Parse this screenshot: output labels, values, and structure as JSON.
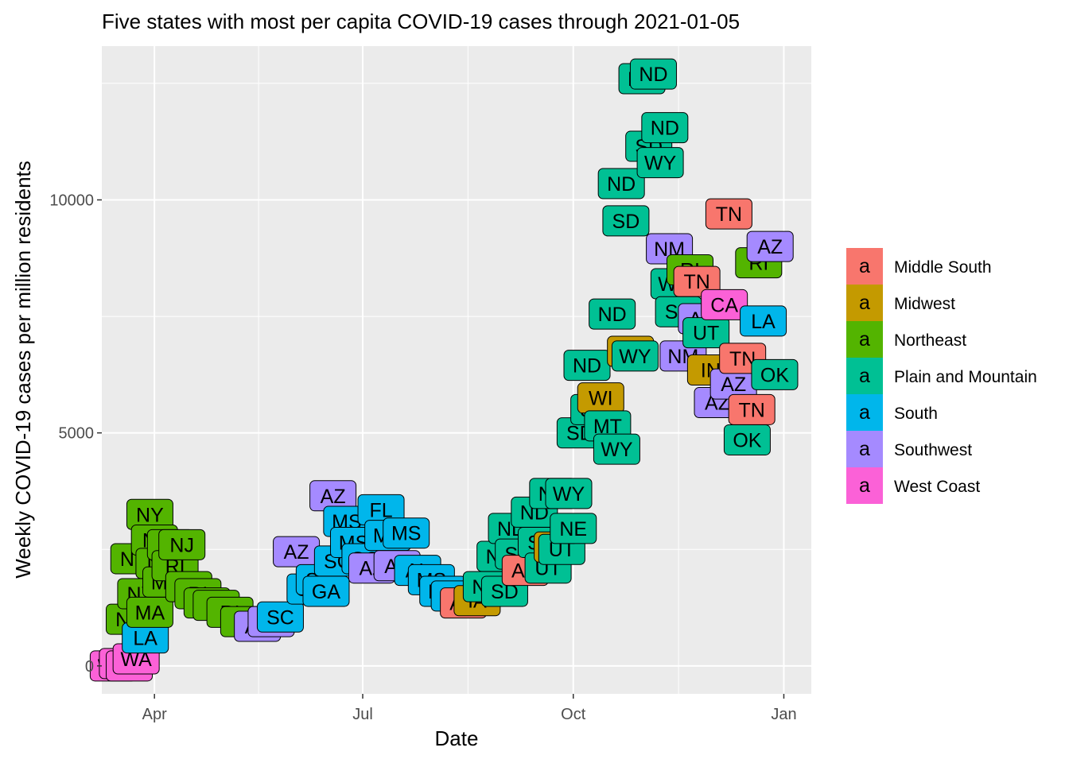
{
  "chart_data": {
    "type": "scatter",
    "title": "Five states with most per capita COVID-19 cases through 2021-01-05",
    "xlabel": "Date",
    "ylabel": "Weekly COVID-19 cases per million residents",
    "x_ticks": [
      "Apr",
      "Jul",
      "Oct",
      "Jan"
    ],
    "y_ticks": [
      0,
      5000,
      10000
    ],
    "ylim": [
      -600,
      13300
    ],
    "xlim": [
      "2020-03-09",
      "2021-01-13"
    ],
    "grid": true,
    "panel_color": "#EBEBEB",
    "legend": {
      "position": "right",
      "key_glyph": "a",
      "entries": [
        {
          "name": "Middle South",
          "color": "#F8766D"
        },
        {
          "name": "Midwest",
          "color": "#C49A00"
        },
        {
          "name": "Northeast",
          "color": "#53B400"
        },
        {
          "name": "Plain and Mountain",
          "color": "#00C094"
        },
        {
          "name": "South",
          "color": "#00B6EB"
        },
        {
          "name": "Southwest",
          "color": "#A58AFF"
        },
        {
          "name": "West Coast",
          "color": "#FB61D7"
        }
      ]
    },
    "points": [
      {
        "date": "2020-03-14",
        "value": 0,
        "label": "WA",
        "region": "West Coast"
      },
      {
        "date": "2020-03-18",
        "value": 50,
        "label": "WA",
        "region": "West Coast"
      },
      {
        "date": "2020-03-21",
        "value": 0,
        "label": "WA",
        "region": "West Coast"
      },
      {
        "date": "2020-03-24",
        "value": 150,
        "label": "WA",
        "region": "West Coast"
      },
      {
        "date": "2020-03-21",
        "value": 1000,
        "label": "NY",
        "region": "Northeast"
      },
      {
        "date": "2020-03-23",
        "value": 2300,
        "label": "NY",
        "region": "Northeast"
      },
      {
        "date": "2020-03-26",
        "value": 1550,
        "label": "NY",
        "region": "Northeast"
      },
      {
        "date": "2020-03-28",
        "value": 600,
        "label": "LA",
        "region": "South"
      },
      {
        "date": "2020-03-30",
        "value": 1150,
        "label": "MA",
        "region": "Northeast"
      },
      {
        "date": "2020-03-30",
        "value": 3250,
        "label": "NY",
        "region": "Northeast"
      },
      {
        "date": "2020-04-01",
        "value": 2700,
        "label": "NJ",
        "region": "Northeast"
      },
      {
        "date": "2020-04-03",
        "value": 2200,
        "label": "NJ",
        "region": "Northeast"
      },
      {
        "date": "2020-04-06",
        "value": 1800,
        "label": "MA",
        "region": "Northeast"
      },
      {
        "date": "2020-04-08",
        "value": 2600,
        "label": "NJ",
        "region": "Northeast"
      },
      {
        "date": "2020-04-10",
        "value": 2150,
        "label": "RI",
        "region": "Northeast"
      },
      {
        "date": "2020-04-13",
        "value": 2600,
        "label": "NJ",
        "region": "Northeast"
      },
      {
        "date": "2020-04-16",
        "value": 1700,
        "label": "RI",
        "region": "Northeast"
      },
      {
        "date": "2020-04-20",
        "value": 1550,
        "label": "RI",
        "region": "Northeast"
      },
      {
        "date": "2020-04-24",
        "value": 1350,
        "label": "RI",
        "region": "Northeast"
      },
      {
        "date": "2020-04-28",
        "value": 1300,
        "label": "RI",
        "region": "Northeast"
      },
      {
        "date": "2020-05-04",
        "value": 1150,
        "label": "RI",
        "region": "Northeast"
      },
      {
        "date": "2020-05-10",
        "value": 950,
        "label": "RI",
        "region": "Northeast"
      },
      {
        "date": "2020-05-16",
        "value": 850,
        "label": "AZ",
        "region": "Southwest"
      },
      {
        "date": "2020-05-22",
        "value": 950,
        "label": "AZ",
        "region": "Southwest"
      },
      {
        "date": "2020-05-26",
        "value": 1050,
        "label": "SC",
        "region": "South"
      },
      {
        "date": "2020-06-02",
        "value": 2450,
        "label": "AZ",
        "region": "Southwest"
      },
      {
        "date": "2020-06-08",
        "value": 1650,
        "label": "SC",
        "region": "South"
      },
      {
        "date": "2020-06-12",
        "value": 1850,
        "label": "SC",
        "region": "South"
      },
      {
        "date": "2020-06-15",
        "value": 1600,
        "label": "GA",
        "region": "South"
      },
      {
        "date": "2020-06-18",
        "value": 3650,
        "label": "AZ",
        "region": "Southwest"
      },
      {
        "date": "2020-06-20",
        "value": 2250,
        "label": "SC",
        "region": "South"
      },
      {
        "date": "2020-06-24",
        "value": 3100,
        "label": "MS",
        "region": "South"
      },
      {
        "date": "2020-06-27",
        "value": 2650,
        "label": "MS",
        "region": "South"
      },
      {
        "date": "2020-07-02",
        "value": 2300,
        "label": "SC",
        "region": "South"
      },
      {
        "date": "2020-07-05",
        "value": 2100,
        "label": "AZ",
        "region": "Southwest"
      },
      {
        "date": "2020-07-09",
        "value": 3350,
        "label": "FL",
        "region": "South"
      },
      {
        "date": "2020-07-12",
        "value": 2800,
        "label": "MS",
        "region": "South"
      },
      {
        "date": "2020-07-16",
        "value": 2150,
        "label": "AZ",
        "region": "Southwest"
      },
      {
        "date": "2020-07-20",
        "value": 2850,
        "label": "MS",
        "region": "South"
      },
      {
        "date": "2020-07-25",
        "value": 2050,
        "label": "AL",
        "region": "South"
      },
      {
        "date": "2020-07-31",
        "value": 1850,
        "label": "MS",
        "region": "South"
      },
      {
        "date": "2020-08-05",
        "value": 1600,
        "label": "MS",
        "region": "South"
      },
      {
        "date": "2020-08-10",
        "value": 1500,
        "label": "MS",
        "region": "South"
      },
      {
        "date": "2020-08-14",
        "value": 1350,
        "label": "AR",
        "region": "Middle South"
      },
      {
        "date": "2020-08-20",
        "value": 1400,
        "label": "IA",
        "region": "Midwest"
      },
      {
        "date": "2020-08-24",
        "value": 1700,
        "label": "ND",
        "region": "Plain and Mountain"
      },
      {
        "date": "2020-08-30",
        "value": 2350,
        "label": "ND",
        "region": "Plain and Mountain"
      },
      {
        "date": "2020-09-01",
        "value": 1600,
        "label": "SD",
        "region": "Plain and Mountain"
      },
      {
        "date": "2020-09-04",
        "value": 2950,
        "label": "ND",
        "region": "Plain and Mountain"
      },
      {
        "date": "2020-09-07",
        "value": 2400,
        "label": "SD",
        "region": "Plain and Mountain"
      },
      {
        "date": "2020-09-10",
        "value": 2050,
        "label": "AR",
        "region": "Middle South"
      },
      {
        "date": "2020-09-14",
        "value": 3300,
        "label": "ND",
        "region": "Plain and Mountain"
      },
      {
        "date": "2020-09-17",
        "value": 2650,
        "label": "SD",
        "region": "Plain and Mountain"
      },
      {
        "date": "2020-09-20",
        "value": 2100,
        "label": "UT",
        "region": "Plain and Mountain"
      },
      {
        "date": "2020-09-22",
        "value": 3700,
        "label": "ND",
        "region": "Plain and Mountain"
      },
      {
        "date": "2020-09-24",
        "value": 2550,
        "label": "WI",
        "region": "Midwest"
      },
      {
        "date": "2020-09-26",
        "value": 2500,
        "label": "UT",
        "region": "Plain and Mountain"
      },
      {
        "date": "2020-09-29",
        "value": 3700,
        "label": "WY",
        "region": "Plain and Mountain"
      },
      {
        "date": "2020-10-01",
        "value": 2950,
        "label": "NE",
        "region": "Plain and Mountain"
      },
      {
        "date": "2020-10-04",
        "value": 5000,
        "label": "SD",
        "region": "Plain and Mountain"
      },
      {
        "date": "2020-10-07",
        "value": 6450,
        "label": "ND",
        "region": "Plain and Mountain"
      },
      {
        "date": "2020-10-10",
        "value": 5500,
        "label": "SD",
        "region": "Plain and Mountain"
      },
      {
        "date": "2020-10-13",
        "value": 5750,
        "label": "WI",
        "region": "Midwest"
      },
      {
        "date": "2020-10-16",
        "value": 5150,
        "label": "MT",
        "region": "Plain and Mountain"
      },
      {
        "date": "2020-10-18",
        "value": 7550,
        "label": "ND",
        "region": "Plain and Mountain"
      },
      {
        "date": "2020-10-20",
        "value": 4650,
        "label": "WY",
        "region": "Plain and Mountain"
      },
      {
        "date": "2020-10-22",
        "value": 10350,
        "label": "ND",
        "region": "Plain and Mountain"
      },
      {
        "date": "2020-10-24",
        "value": 9550,
        "label": "SD",
        "region": "Plain and Mountain"
      },
      {
        "date": "2020-10-26",
        "value": 6750,
        "label": "WI",
        "region": "Midwest"
      },
      {
        "date": "2020-10-28",
        "value": 6650,
        "label": "WY",
        "region": "Plain and Mountain"
      },
      {
        "date": "2020-10-31",
        "value": 12600,
        "label": "ND",
        "region": "Plain and Mountain"
      },
      {
        "date": "2020-11-03",
        "value": 11150,
        "label": "SD",
        "region": "Plain and Mountain"
      },
      {
        "date": "2020-11-05",
        "value": 12700,
        "label": "ND",
        "region": "Plain and Mountain"
      },
      {
        "date": "2020-11-08",
        "value": 10800,
        "label": "WY",
        "region": "Plain and Mountain"
      },
      {
        "date": "2020-11-10",
        "value": 11550,
        "label": "ND",
        "region": "Plain and Mountain"
      },
      {
        "date": "2020-11-12",
        "value": 8950,
        "label": "NM",
        "region": "Southwest"
      },
      {
        "date": "2020-11-14",
        "value": 8200,
        "label": "WY",
        "region": "Plain and Mountain"
      },
      {
        "date": "2020-11-16",
        "value": 7600,
        "label": "SD",
        "region": "Plain and Mountain"
      },
      {
        "date": "2020-11-18",
        "value": 6650,
        "label": "NM",
        "region": "Southwest"
      },
      {
        "date": "2020-11-21",
        "value": 8500,
        "label": "RI",
        "region": "Northeast"
      },
      {
        "date": "2020-11-24",
        "value": 8250,
        "label": "TN",
        "region": "Middle South"
      },
      {
        "date": "2020-11-26",
        "value": 7450,
        "label": "AZ",
        "region": "Southwest"
      },
      {
        "date": "2020-11-28",
        "value": 7150,
        "label": "UT",
        "region": "Plain and Mountain"
      },
      {
        "date": "2020-11-30",
        "value": 6350,
        "label": "IN",
        "region": "Midwest"
      },
      {
        "date": "2020-12-03",
        "value": 5650,
        "label": "AZ",
        "region": "Southwest"
      },
      {
        "date": "2020-12-06",
        "value": 7750,
        "label": "CA",
        "region": "West Coast"
      },
      {
        "date": "2020-12-08",
        "value": 9700,
        "label": "TN",
        "region": "Middle South"
      },
      {
        "date": "2020-12-10",
        "value": 6050,
        "label": "AZ",
        "region": "Southwest"
      },
      {
        "date": "2020-12-14",
        "value": 6600,
        "label": "TN",
        "region": "Middle South"
      },
      {
        "date": "2020-12-16",
        "value": 4850,
        "label": "OK",
        "region": "Plain and Mountain"
      },
      {
        "date": "2020-12-18",
        "value": 5500,
        "label": "TN",
        "region": "Middle South"
      },
      {
        "date": "2020-12-21",
        "value": 8650,
        "label": "RI",
        "region": "Northeast"
      },
      {
        "date": "2020-12-23",
        "value": 7400,
        "label": "LA",
        "region": "South"
      },
      {
        "date": "2020-12-26",
        "value": 9000,
        "label": "AZ",
        "region": "Southwest"
      },
      {
        "date": "2020-12-28",
        "value": 6250,
        "label": "OK",
        "region": "Plain and Mountain"
      }
    ]
  }
}
